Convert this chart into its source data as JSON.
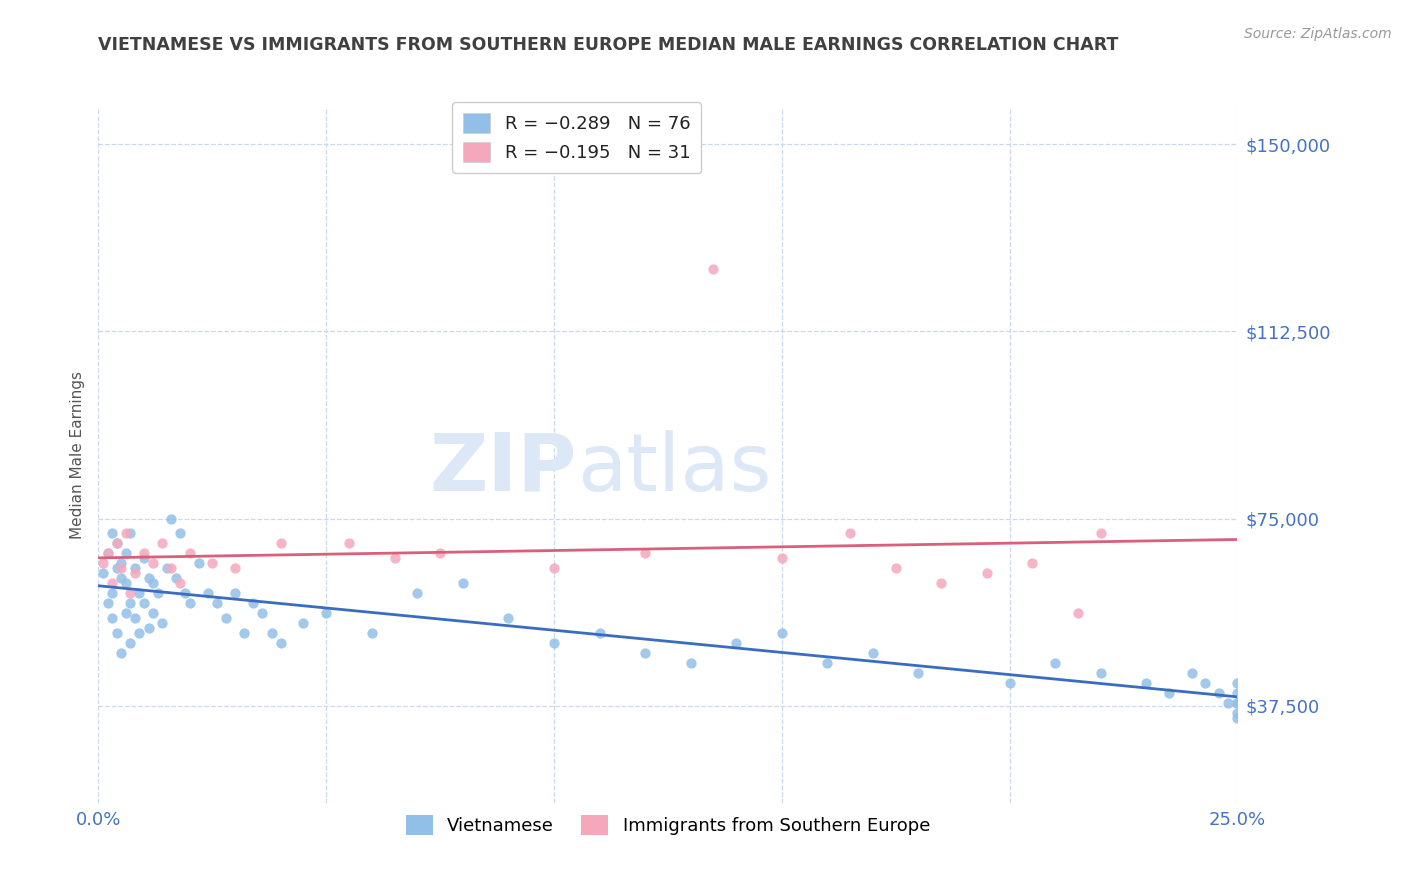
{
  "title": "VIETNAMESE VS IMMIGRANTS FROM SOUTHERN EUROPE MEDIAN MALE EARNINGS CORRELATION CHART",
  "source": "Source: ZipAtlas.com",
  "ylabel": "Median Male Earnings",
  "xlim": [
    0.0,
    0.25
  ],
  "ylim": [
    18000,
    157500
  ],
  "yticks": [
    37500,
    75000,
    112500,
    150000
  ],
  "ytick_labels": [
    "$37,500",
    "$75,000",
    "$112,500",
    "$150,000"
  ],
  "xticks": [
    0.0,
    0.05,
    0.1,
    0.15,
    0.2,
    0.25
  ],
  "xtick_labels": [
    "0.0%",
    "",
    "",
    "",
    "",
    "25.0%"
  ],
  "series1_label": "Vietnamese",
  "series1_color": "#92bfe8",
  "series1_R": -0.289,
  "series1_N": 76,
  "series2_label": "Immigrants from Southern Europe",
  "series2_color": "#f5a8bc",
  "series2_R": -0.195,
  "series2_N": 31,
  "trend_color1": "#3a6cbf",
  "trend_color2": "#d95f7a",
  "background_color": "#ffffff",
  "axis_color": "#4472c4",
  "grid_color": "#c8d8ee",
  "title_color": "#404040",
  "watermark_color": "#dce8f5",
  "s1_x": [
    0.001,
    0.002,
    0.002,
    0.003,
    0.003,
    0.003,
    0.004,
    0.004,
    0.004,
    0.005,
    0.005,
    0.005,
    0.006,
    0.006,
    0.006,
    0.007,
    0.007,
    0.007,
    0.008,
    0.008,
    0.009,
    0.009,
    0.01,
    0.01,
    0.011,
    0.011,
    0.012,
    0.012,
    0.013,
    0.014,
    0.015,
    0.016,
    0.017,
    0.018,
    0.019,
    0.02,
    0.022,
    0.024,
    0.026,
    0.028,
    0.03,
    0.032,
    0.034,
    0.036,
    0.038,
    0.04,
    0.045,
    0.05,
    0.06,
    0.07,
    0.08,
    0.09,
    0.1,
    0.11,
    0.12,
    0.13,
    0.14,
    0.15,
    0.16,
    0.17,
    0.18,
    0.2,
    0.21,
    0.22,
    0.23,
    0.235,
    0.24,
    0.243,
    0.246,
    0.248,
    0.25,
    0.25,
    0.25,
    0.25,
    0.25,
    0.25
  ],
  "s1_y": [
    64000,
    68000,
    58000,
    72000,
    60000,
    55000,
    65000,
    70000,
    52000,
    66000,
    63000,
    48000,
    68000,
    62000,
    56000,
    72000,
    58000,
    50000,
    65000,
    55000,
    60000,
    52000,
    67000,
    58000,
    63000,
    53000,
    62000,
    56000,
    60000,
    54000,
    65000,
    75000,
    63000,
    72000,
    60000,
    58000,
    66000,
    60000,
    58000,
    55000,
    60000,
    52000,
    58000,
    56000,
    52000,
    50000,
    54000,
    56000,
    52000,
    60000,
    62000,
    55000,
    50000,
    52000,
    48000,
    46000,
    50000,
    52000,
    46000,
    48000,
    44000,
    42000,
    46000,
    44000,
    42000,
    40000,
    44000,
    42000,
    40000,
    38000,
    40000,
    38000,
    36000,
    42000,
    38000,
    35000
  ],
  "s2_x": [
    0.001,
    0.002,
    0.003,
    0.004,
    0.005,
    0.006,
    0.007,
    0.008,
    0.01,
    0.012,
    0.014,
    0.016,
    0.018,
    0.02,
    0.025,
    0.03,
    0.04,
    0.055,
    0.065,
    0.075,
    0.1,
    0.12,
    0.135,
    0.15,
    0.165,
    0.175,
    0.185,
    0.195,
    0.205,
    0.215,
    0.22
  ],
  "s2_y": [
    66000,
    68000,
    62000,
    70000,
    65000,
    72000,
    60000,
    64000,
    68000,
    66000,
    70000,
    65000,
    62000,
    68000,
    66000,
    65000,
    70000,
    70000,
    67000,
    68000,
    65000,
    68000,
    125000,
    67000,
    72000,
    65000,
    62000,
    64000,
    66000,
    56000,
    72000
  ]
}
